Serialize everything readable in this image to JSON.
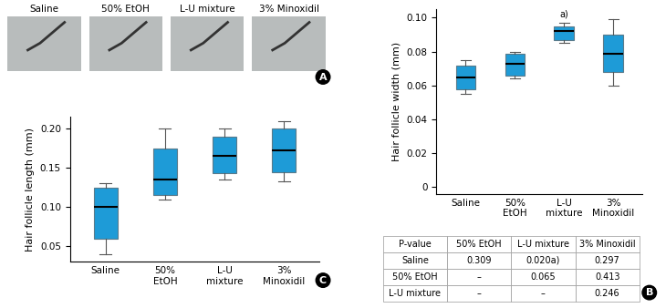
{
  "panels": {
    "A": {
      "panel_label": "A",
      "photo_labels": [
        "Saline",
        "50% EtOH",
        "L-U mixture",
        "3% Minoxidil"
      ]
    },
    "B": {
      "panel_label": "B"
    },
    "C": {
      "panel_label": "C"
    }
  },
  "chart_data": [
    {
      "type": "box",
      "panel": "B",
      "ylabel": "Hair follicle width (mm)",
      "categories": [
        "Saline",
        "50%\nEtOH",
        "L-U\nmixture",
        "3%\nMinoxidil"
      ],
      "boxes": [
        {
          "whislo": 0.055,
          "q1": 0.058,
          "med": 0.065,
          "q3": 0.072,
          "whishi": 0.075
        },
        {
          "whislo": 0.064,
          "q1": 0.066,
          "med": 0.073,
          "q3": 0.079,
          "whishi": 0.08
        },
        {
          "whislo": 0.085,
          "q1": 0.087,
          "med": 0.092,
          "q3": 0.095,
          "whishi": 0.097
        },
        {
          "whislo": 0.06,
          "q1": 0.068,
          "med": 0.079,
          "q3": 0.09,
          "whishi": 0.099
        }
      ],
      "color": "#1e9bd7",
      "ylim": [
        -0.004,
        0.105
      ],
      "yticks": [
        0,
        0.02,
        0.04,
        0.06,
        0.08,
        {
          "value": 0.1,
          "label": "0.10"
        }
      ],
      "annotations": [
        {
          "text": "a)",
          "category_index": 2
        }
      ],
      "table": {
        "header": [
          "P-value",
          "50% EtOH",
          "L-U mixture",
          "3% Minoxidil"
        ],
        "rows": [
          [
            "Saline",
            "0.309",
            "0.020a)",
            "0.297"
          ],
          [
            "50% EtOH",
            "–",
            "0.065",
            "0.413"
          ],
          [
            "L-U mixture",
            "–",
            "–",
            "0.246"
          ]
        ]
      }
    },
    {
      "type": "box",
      "panel": "C",
      "ylabel": "Hair follicle length (mm)",
      "categories": [
        "Saline",
        "50%\nEtOH",
        "L-U\nmixture",
        "3%\nMinoxidil"
      ],
      "boxes": [
        {
          "whislo": 0.04,
          "q1": 0.06,
          "med": 0.1,
          "q3": 0.125,
          "whishi": 0.13
        },
        {
          "whislo": 0.11,
          "q1": 0.115,
          "med": 0.135,
          "q3": 0.175,
          "whishi": 0.2
        },
        {
          "whislo": 0.135,
          "q1": 0.143,
          "med": 0.165,
          "q3": 0.19,
          "whishi": 0.2
        },
        {
          "whislo": 0.133,
          "q1": 0.145,
          "med": 0.173,
          "q3": 0.2,
          "whishi": 0.21
        }
      ],
      "color": "#1e9bd7",
      "ylim": [
        0.03,
        0.215
      ],
      "yticks": [
        0.05,
        {
          "value": 0.1,
          "label": "0.10"
        },
        0.15,
        {
          "value": 0.2,
          "label": "0.20"
        }
      ]
    }
  ]
}
